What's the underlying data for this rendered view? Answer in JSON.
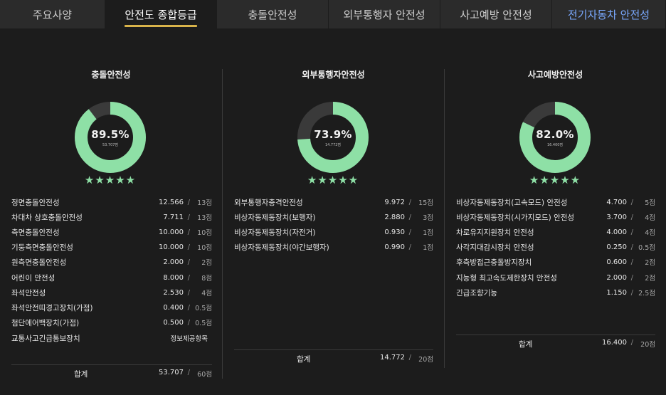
{
  "tabs": [
    {
      "label": "주요사양",
      "active": false
    },
    {
      "label": "안전도 종합등급",
      "active": true
    },
    {
      "label": "충돌안전성",
      "active": false
    },
    {
      "label": "외부통행자 안전성",
      "active": false
    },
    {
      "label": "사고예방 안전성",
      "active": false
    },
    {
      "label": "전기자동차 안전성",
      "active": false
    }
  ],
  "colors": {
    "accent": "#8ee0a6",
    "tab_underline": "#d8b34a",
    "ev_tab": "#7aa9ff"
  },
  "sections": [
    {
      "title": "충돌안전성",
      "percent_label": "89.5%",
      "percent_value": 89.5,
      "score_label": "53.707점",
      "stars": "★★★★★",
      "items": [
        {
          "label": "정면충돌안전성",
          "value": "12.566",
          "max": "13점"
        },
        {
          "label": "차대차 상호충돌안전성",
          "value": "7.711",
          "max": "13점"
        },
        {
          "label": "측면충돌안전성",
          "value": "10.000",
          "max": "10점"
        },
        {
          "label": "기둥측면충돌안전성",
          "value": "10.000",
          "max": "10점"
        },
        {
          "label": "원측면충돌안전성",
          "value": "2.000",
          "max": "2점"
        },
        {
          "label": "어린이 안전성",
          "value": "8.000",
          "max": "8점"
        },
        {
          "label": "좌석안전성",
          "value": "2.530",
          "max": "4점"
        },
        {
          "label": "좌석안전띠경고장치(가점)",
          "value": "0.400",
          "max": "0.5점"
        },
        {
          "label": "첨단에어백장치(가점)",
          "value": "0.500",
          "max": "0.5점"
        },
        {
          "label": "교통사고긴급통보장치",
          "info": "정보제공항목"
        }
      ],
      "total": {
        "label": "합계",
        "value": "53.707",
        "max": "60점"
      }
    },
    {
      "title": "외부통행자안전성",
      "percent_label": "73.9%",
      "percent_value": 73.9,
      "score_label": "14.772점",
      "stars": "★★★★★",
      "items": [
        {
          "label": "외부통행자충격안전성",
          "value": "9.972",
          "max": "15점"
        },
        {
          "label": "비상자동제동장치(보행자)",
          "value": "2.880",
          "max": "3점"
        },
        {
          "label": "비상자동제동장치(자전거)",
          "value": "0.930",
          "max": "1점"
        },
        {
          "label": "비상자동제동장치(야간보행자)",
          "value": "0.990",
          "max": "1점"
        }
      ],
      "total": {
        "label": "합계",
        "value": "14.772",
        "max": "20점"
      }
    },
    {
      "title": "사고예방안전성",
      "percent_label": "82.0%",
      "percent_value": 82.0,
      "score_label": "16.400점",
      "stars": "★★★★★",
      "items": [
        {
          "label": "비상자동제동장치(고속모드) 안전성",
          "value": "4.700",
          "max": "5점"
        },
        {
          "label": "비상자동제동장치(시가지모드) 안전성",
          "value": "3.700",
          "max": "4점"
        },
        {
          "label": "차로유지지원장치 안전성",
          "value": "4.000",
          "max": "4점"
        },
        {
          "label": "사각지대감시장치 안전성",
          "value": "0.250",
          "max": "0.5점"
        },
        {
          "label": "후측방접근충돌방지장치",
          "value": "0.600",
          "max": "2점"
        },
        {
          "label": "지능형 최고속도제한장치 안전성",
          "value": "2.000",
          "max": "2점"
        },
        {
          "label": "긴급조향기능",
          "value": "1.150",
          "max": "2.5점"
        }
      ],
      "total": {
        "label": "합계",
        "value": "16.400",
        "max": "20점"
      }
    }
  ]
}
